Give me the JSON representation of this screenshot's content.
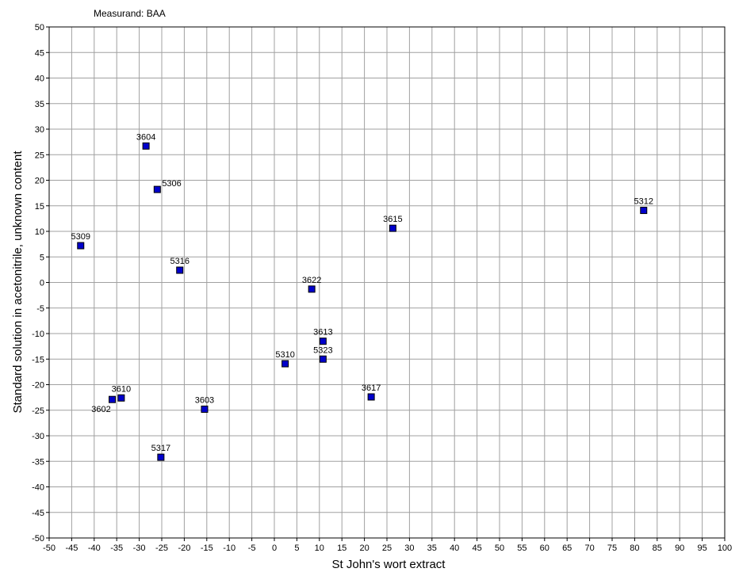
{
  "chart_data": {
    "type": "scatter",
    "title": "Measurand: BAA",
    "xlabel": "St John's wort extract",
    "ylabel": "Standard solution in acetonitrile, unknown content",
    "xlim": [
      -50,
      100
    ],
    "ylim": [
      -50,
      50
    ],
    "x_step": 5,
    "y_step": 5,
    "grid": true,
    "marker_color": "#0000cc",
    "points": [
      {
        "label": "3604",
        "x": -28.5,
        "y": 26.7
      },
      {
        "label": "5306",
        "x": -26.0,
        "y": 18.2
      },
      {
        "label": "5309",
        "x": -43.0,
        "y": 7.2
      },
      {
        "label": "5316",
        "x": -21.0,
        "y": 2.4
      },
      {
        "label": "3615",
        "x": 26.3,
        "y": 10.6
      },
      {
        "label": "5312",
        "x": 82.0,
        "y": 14.1
      },
      {
        "label": "3622",
        "x": 8.3,
        "y": -1.3
      },
      {
        "label": "3613",
        "x": 10.8,
        "y": -11.5
      },
      {
        "label": "5323",
        "x": 10.8,
        "y": -15.0
      },
      {
        "label": "5310",
        "x": 2.4,
        "y": -15.9
      },
      {
        "label": "3617",
        "x": 21.5,
        "y": -22.4
      },
      {
        "label": "3610",
        "x": -34.0,
        "y": -22.6
      },
      {
        "label": "3602",
        "x": -36.0,
        "y": -22.9
      },
      {
        "label": "3603",
        "x": -15.5,
        "y": -24.8
      },
      {
        "label": "5317",
        "x": -25.2,
        "y": -34.2
      }
    ]
  }
}
